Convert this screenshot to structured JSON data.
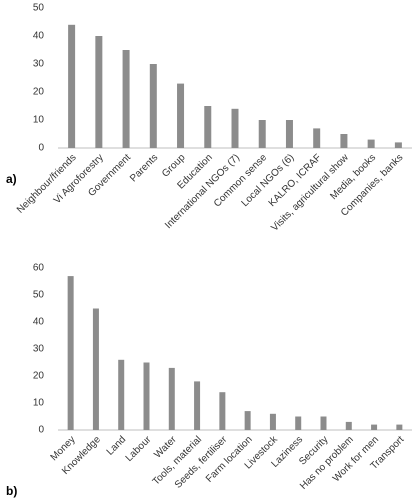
{
  "chart_data": [
    {
      "type": "bar",
      "panel": "a)",
      "categories": [
        "Neighbour/friends",
        "Vi Agroforestry",
        "Government",
        "Parents",
        "Group",
        "Education",
        "International NGOs  (7)",
        "Common sense",
        "Local NGOs (6)",
        "KALRO, ICRAF",
        "Visits, agricultural show",
        "Media, books",
        "Companies, banks"
      ],
      "values": [
        44,
        40,
        35,
        30,
        23,
        15,
        14,
        10,
        10,
        7,
        5,
        3,
        2
      ],
      "color": "#8c8c8c",
      "ylim": [
        0,
        50
      ],
      "yticks": [
        0,
        10,
        20,
        30,
        40,
        50
      ],
      "grid": false
    },
    {
      "type": "bar",
      "panel": "b)",
      "categories": [
        "Money",
        "Knowledge",
        "Land",
        "Labour",
        "Water",
        "Tools, material",
        "Seeds, fertiliser",
        "Farm location",
        "Livestock",
        "Laziness",
        "Security",
        "Has no problem",
        "Work for men",
        "Transport"
      ],
      "values": [
        57,
        45,
        26,
        25,
        23,
        18,
        14,
        7,
        6,
        5,
        5,
        3,
        2,
        2
      ],
      "color": "#8c8c8c",
      "ylim": [
        0,
        60
      ],
      "yticks": [
        0,
        10,
        20,
        30,
        40,
        50,
        60
      ],
      "grid": false
    }
  ]
}
